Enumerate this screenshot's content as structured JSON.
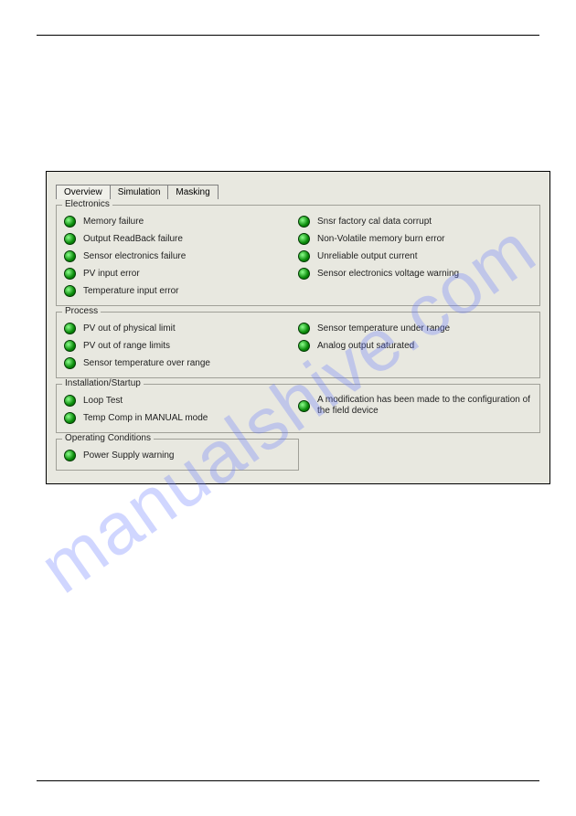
{
  "watermark_text": "manualshive.com",
  "tabs": {
    "t0": "Overview",
    "t1": "Simulation",
    "t2": "Masking"
  },
  "groups": {
    "electronics": {
      "title": "Electronics",
      "left": {
        "i0": "Memory failure",
        "i1": "Output ReadBack failure",
        "i2": "Sensor electronics failure",
        "i3": "PV input error",
        "i4": "Temperature input error"
      },
      "right": {
        "i0": "Snsr factory cal data corrupt",
        "i1": "Non-Volatile memory burn error",
        "i2": "Unreliable output current",
        "i3": "Sensor electronics voltage warning"
      }
    },
    "process": {
      "title": "Process",
      "left": {
        "i0": "PV out of physical limit",
        "i1": "PV out of range limits",
        "i2": "Sensor temperature over range"
      },
      "right": {
        "i0": "Sensor temperature under range",
        "i1": "Analog output saturated"
      }
    },
    "install": {
      "title": "Installation/Startup",
      "left": {
        "i0": "Loop Test",
        "i1": "Temp Comp in MANUAL mode"
      },
      "right": {
        "i0": "A modification has been made to the configuration of the field device"
      }
    },
    "opcond": {
      "title": "Operating Conditions",
      "left": {
        "i0": "Power Supply warning"
      }
    }
  },
  "colors": {
    "panel_bg": "#e8e8e0",
    "border": "#a0a098",
    "text": "#222222",
    "led_edge": "#033a03",
    "led_inner": "#0a8a0a",
    "watermark": "rgba(100,120,255,0.30)"
  }
}
